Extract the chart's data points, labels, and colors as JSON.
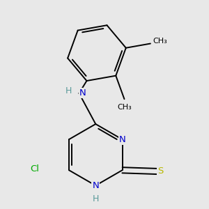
{
  "background_color": "#e8e8e8",
  "bond_color": "#000000",
  "atom_colors": {
    "N": "#0000cc",
    "S": "#b8b800",
    "Cl": "#00aa00",
    "C": "#000000",
    "H": "#5a9a9a"
  },
  "lw": 1.4,
  "fs": 9.5
}
